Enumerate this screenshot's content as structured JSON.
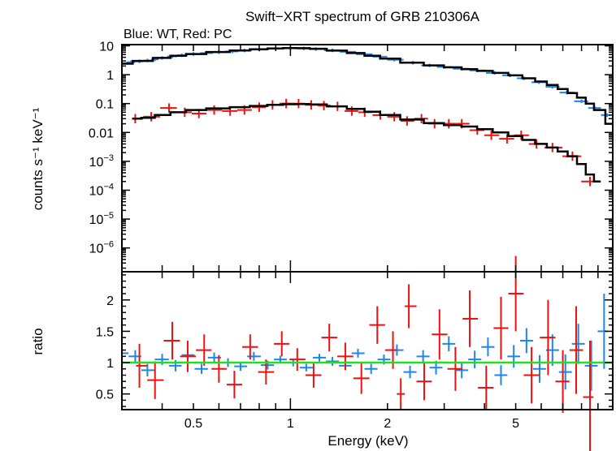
{
  "chart_data": {
    "type": "scatter",
    "title": "Swift−XRT spectrum of GRB 210306A",
    "subtitle": "Blue: WT, Red: PC",
    "xlabel": "Energy (keV)",
    "x_scale": "log",
    "xlim": [
      0.3,
      10
    ],
    "x_tick_labels": [
      {
        "value": 0.5,
        "label": "0.5"
      },
      {
        "value": 1,
        "label": "1"
      },
      {
        "value": 2,
        "label": "2"
      },
      {
        "value": 5,
        "label": "5"
      }
    ],
    "colors": {
      "wt": "#1f86e8",
      "pc": "#ee1111",
      "model": "#000000",
      "unity": "#22dd22"
    },
    "panels": [
      {
        "name": "spectrum",
        "ylabel": "counts s⁻¹ keV⁻¹",
        "y_scale": "log",
        "ylim": [
          1.5e-07,
          11
        ],
        "y_tick_labels": [
          {
            "value": 10,
            "label": "10",
            "sup": ""
          },
          {
            "value": 1,
            "label": "1",
            "sup": ""
          },
          {
            "value": 0.1,
            "label": "0.1",
            "sup": ""
          },
          {
            "value": 0.01,
            "label": "0.01",
            "sup": ""
          },
          {
            "value": 0.001,
            "label": "10",
            "sup": "−3"
          },
          {
            "value": 0.0001,
            "label": "10",
            "sup": "−4"
          },
          {
            "value": 1e-05,
            "label": "10",
            "sup": "−5"
          },
          {
            "value": 1e-06,
            "label": "10",
            "sup": "−6"
          }
        ],
        "series": [
          {
            "name": "WT",
            "x": [
              0.3,
              0.32,
              0.34,
              0.36,
              0.38,
              0.4,
              0.43,
              0.46,
              0.5,
              0.55,
              0.6,
              0.66,
              0.72,
              0.8,
              0.9,
              1.0,
              1.1,
              1.2,
              1.35,
              1.5,
              1.7,
              1.9,
              2.1,
              2.4,
              2.7,
              3.0,
              3.4,
              3.8,
              4.3,
              4.8,
              5.3,
              5.9,
              6.5,
              7.2,
              8.0,
              8.8,
              9.6
            ],
            "y": [
              2.5,
              2.7,
              2.9,
              3.1,
              3.4,
              3.8,
              4.3,
              4.7,
              5.2,
              5.6,
              6.0,
              6.4,
              6.9,
              7.4,
              8.0,
              8.3,
              8.1,
              7.7,
              7.0,
              6.2,
              5.1,
              4.2,
              3.3,
              2.6,
              2.1,
              1.85,
              1.6,
              1.4,
              1.15,
              0.95,
              0.75,
              0.55,
              0.38,
              0.24,
              0.12,
              0.07,
              0.04
            ],
            "yerr_factor": 1.15
          },
          {
            "name": "PC",
            "x": [
              0.33,
              0.37,
              0.42,
              0.47,
              0.52,
              0.58,
              0.65,
              0.72,
              0.8,
              0.88,
              0.97,
              1.06,
              1.16,
              1.27,
              1.4,
              1.55,
              1.7,
              1.9,
              2.1,
              2.3,
              2.55,
              2.8,
              3.1,
              3.4,
              3.8,
              4.2,
              4.7,
              5.2,
              5.8,
              6.5,
              7.5,
              8.5
            ],
            "y": [
              0.03,
              0.035,
              0.07,
              0.05,
              0.045,
              0.06,
              0.055,
              0.06,
              0.075,
              0.09,
              0.1,
              0.1,
              0.09,
              0.085,
              0.08,
              0.055,
              0.05,
              0.04,
              0.035,
              0.025,
              0.03,
              0.02,
              0.02,
              0.02,
              0.012,
              0.008,
              0.006,
              0.008,
              0.004,
              0.003,
              0.0015,
              0.0002
            ],
            "yerr_factor": 1.45
          },
          {
            "name": "WT model",
            "x": [
              0.3,
              0.35,
              0.4,
              0.45,
              0.5,
              0.6,
              0.7,
              0.8,
              0.9,
              1.0,
              1.1,
              1.2,
              1.4,
              1.6,
              1.8,
              2.0,
              2.4,
              2.8,
              3.2,
              3.6,
              4.0,
              4.5,
              5.0,
              5.5,
              6.0,
              6.5,
              7.0,
              7.5,
              8.0,
              8.5,
              9.0,
              10.0
            ],
            "y": [
              2.4,
              3.0,
              3.8,
              4.5,
              5.2,
              6.1,
              6.9,
              7.6,
              8.1,
              8.4,
              8.3,
              7.9,
              6.8,
              5.6,
              4.5,
              3.6,
              2.6,
              2.1,
              1.8,
              1.55,
              1.35,
              1.15,
              0.95,
              0.75,
              0.58,
              0.44,
              0.32,
              0.23,
              0.16,
              0.1,
              0.06,
              0.02
            ]
          },
          {
            "name": "PC model",
            "x": [
              0.33,
              0.36,
              0.4,
              0.45,
              0.5,
              0.6,
              0.7,
              0.8,
              0.9,
              1.0,
              1.1,
              1.2,
              1.4,
              1.6,
              1.8,
              2.0,
              2.4,
              2.8,
              3.2,
              3.6,
              4.0,
              4.5,
              5.0,
              5.5,
              6.0,
              6.5,
              7.0,
              7.5,
              8.0,
              8.5,
              9.0
            ],
            "y": [
              0.03,
              0.032,
              0.04,
              0.05,
              0.06,
              0.068,
              0.075,
              0.083,
              0.09,
              0.095,
              0.096,
              0.093,
              0.08,
              0.065,
              0.052,
              0.04,
              0.028,
              0.021,
              0.018,
              0.016,
              0.013,
              0.01,
              0.0075,
              0.0055,
              0.004,
              0.003,
              0.0022,
              0.0015,
              0.0008,
              0.00035,
              0.0002
            ]
          }
        ]
      },
      {
        "name": "ratio",
        "ylabel": "ratio",
        "y_scale": "linear",
        "ylim": [
          0.25,
          2.45
        ],
        "y_tick_labels": [
          {
            "value": 0.5,
            "label": "0.5"
          },
          {
            "value": 1,
            "label": "1"
          },
          {
            "value": 1.5,
            "label": "1.5"
          },
          {
            "value": 2,
            "label": "2"
          }
        ],
        "series": [
          {
            "name": "WT",
            "x": [
              0.3,
              0.33,
              0.36,
              0.4,
              0.44,
              0.48,
              0.53,
              0.58,
              0.64,
              0.7,
              0.77,
              0.85,
              0.93,
              1.02,
              1.12,
              1.23,
              1.35,
              1.48,
              1.62,
              1.78,
              1.95,
              2.14,
              2.35,
              2.58,
              2.83,
              3.1,
              3.4,
              3.73,
              4.1,
              4.5,
              4.93,
              5.4,
              5.93,
              6.5,
              7.13,
              7.82,
              8.58,
              9.4
            ],
            "y": [
              1.15,
              1.1,
              0.88,
              1.05,
              0.95,
              1.12,
              0.9,
              1.08,
              1.0,
              0.94,
              1.1,
              0.96,
              1.05,
              1.0,
              0.92,
              1.08,
              1.02,
              0.95,
              1.15,
              0.9,
              1.05,
              1.2,
              0.85,
              1.1,
              0.92,
              1.3,
              0.88,
              1.05,
              1.25,
              0.8,
              1.1,
              1.35,
              0.9,
              1.2,
              0.85,
              1.3,
              0.95,
              1.5
            ],
            "yerr": [
              0.12,
              0.1,
              0.1,
              0.09,
              0.09,
              0.08,
              0.08,
              0.08,
              0.07,
              0.07,
              0.07,
              0.07,
              0.06,
              0.06,
              0.06,
              0.06,
              0.07,
              0.07,
              0.07,
              0.08,
              0.08,
              0.09,
              0.1,
              0.1,
              0.11,
              0.12,
              0.13,
              0.14,
              0.15,
              0.16,
              0.18,
              0.2,
              0.22,
              0.25,
              0.28,
              0.32,
              0.4,
              0.6
            ]
          },
          {
            "name": "PC",
            "x": [
              0.34,
              0.38,
              0.43,
              0.48,
              0.54,
              0.6,
              0.67,
              0.75,
              0.84,
              0.94,
              1.05,
              1.18,
              1.32,
              1.48,
              1.66,
              1.86,
              2.08,
              2.2,
              2.33,
              2.6,
              2.9,
              3.25,
              3.6,
              4.05,
              4.5,
              5.0,
              5.6,
              6.3,
              7.0,
              7.7,
              8.5
            ],
            "y": [
              0.95,
              0.72,
              1.35,
              1.1,
              1.2,
              0.9,
              0.65,
              1.25,
              0.85,
              1.3,
              1.05,
              0.8,
              1.4,
              1.1,
              0.75,
              1.6,
              1.2,
              0.5,
              1.9,
              0.7,
              1.45,
              0.9,
              1.7,
              0.6,
              1.55,
              2.1,
              0.8,
              1.4,
              0.7,
              1.2,
              0.45
            ],
            "yerr": [
              0.35,
              0.3,
              0.3,
              0.25,
              0.25,
              0.22,
              0.22,
              0.2,
              0.2,
              0.2,
              0.18,
              0.2,
              0.22,
              0.22,
              0.25,
              0.3,
              0.3,
              0.25,
              0.35,
              0.3,
              0.4,
              0.35,
              0.45,
              0.35,
              0.5,
              0.6,
              0.45,
              0.6,
              0.5,
              0.7,
              0.9
            ]
          }
        ]
      }
    ]
  }
}
